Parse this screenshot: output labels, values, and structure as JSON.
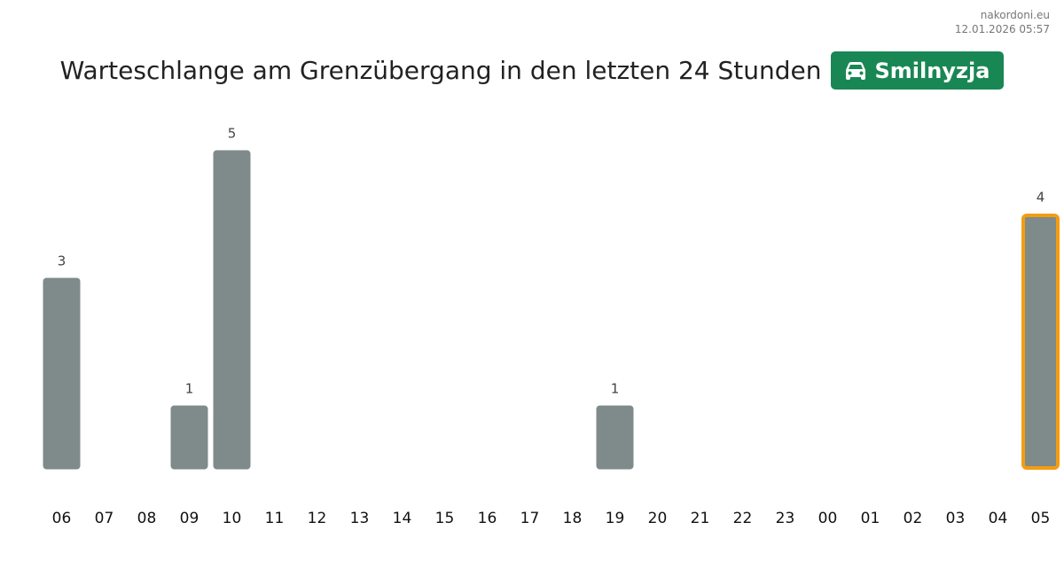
{
  "site": {
    "name": "nakordoni.eu",
    "timestamp": "12.01.2026 05:57"
  },
  "header": {
    "title": "Warteschlange am Grenzübergang in den letzten 24 Stunden",
    "badge_label": "Smilnyzja",
    "badge_icon": "car-icon"
  },
  "colors": {
    "bar": "#7f8a8a",
    "highlight_border": "#f39c12",
    "badge": "#198754"
  },
  "chart_data": {
    "type": "bar",
    "categories": [
      "06",
      "07",
      "08",
      "09",
      "10",
      "11",
      "12",
      "13",
      "14",
      "15",
      "16",
      "17",
      "18",
      "19",
      "20",
      "21",
      "22",
      "23",
      "00",
      "01",
      "02",
      "03",
      "04",
      "05"
    ],
    "values": [
      3,
      0,
      0,
      1,
      5,
      0,
      0,
      0,
      0,
      0,
      0,
      0,
      0,
      1,
      0,
      0,
      0,
      0,
      0,
      0,
      0,
      0,
      0,
      4
    ],
    "highlight_index": 23,
    "ylim": [
      0,
      5
    ],
    "grid": false,
    "legend": "none",
    "xlabel": "",
    "ylabel": ""
  }
}
